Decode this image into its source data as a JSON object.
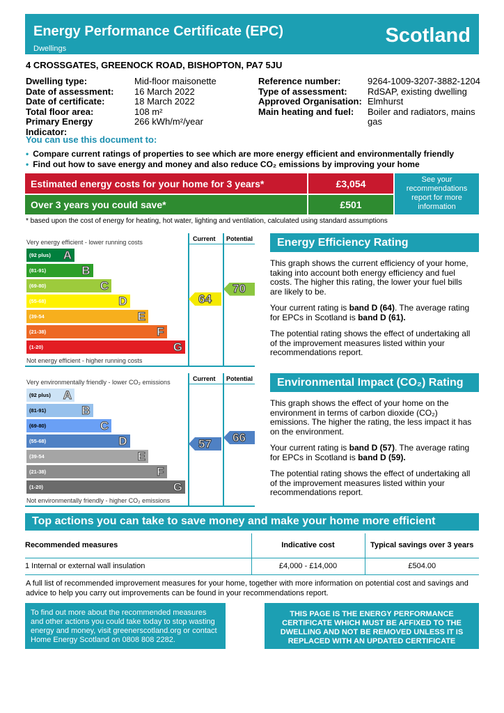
{
  "header": {
    "title": "Energy Performance Certificate (EPC)",
    "subtitle": "Dwellings",
    "region": "Scotland"
  },
  "address": "4 CROSSGATES,  GREENOCK ROAD, BISHOPTON, PA7 5JU",
  "details_left": [
    {
      "label": "Dwelling type:",
      "value": "Mid-floor maisonette"
    },
    {
      "label": "Date of assessment:",
      "value": "16 March 2022"
    },
    {
      "label": "Date of certificate:",
      "value": "18 March 2022"
    },
    {
      "label": "Total floor area:",
      "value": "108 m²"
    },
    {
      "label": "Primary Energy Indicator:",
      "value": "266 kWh/m²/year"
    }
  ],
  "details_right": [
    {
      "label": "Reference number:",
      "value": "9264-1009-3207-3882-1204"
    },
    {
      "label": "Type of assessment:",
      "value": "RdSAP, existing dwelling"
    },
    {
      "label": "Approved Organisation:",
      "value": "Elmhurst"
    },
    {
      "label": "Main heating and fuel:",
      "value": "Boiler and radiators, mains gas"
    }
  ],
  "use": {
    "heading": "You can use this document to:",
    "items": [
      "Compare current ratings of properties to see which are more energy efficient and environmentally friendly",
      "Find out how to save energy and money and also reduce CO₂ emissions by improving your home"
    ]
  },
  "costs": {
    "estimated_label": "Estimated energy costs for your home for 3 years*",
    "estimated_value": "£3,054",
    "save_label": "Over 3 years you could save*",
    "save_value": "£501",
    "see_recs": "See your recommendations report for more information",
    "footnote": "* based upon the cost of energy for heating, hot water, lighting and ventilation, calculated using standard assumptions"
  },
  "colors": {
    "teal": "#1c9fb3",
    "red": "#c8192e",
    "green": "#2e8b30"
  },
  "energy_chart": {
    "top": "Very energy efficient - lower running costs",
    "bottom": "Not energy efficient - higher running costs",
    "current_label": "Current",
    "potential_label": "Potential",
    "current": 64,
    "potential": 70,
    "current_color": "#f5ea00",
    "potential_color": "#8cc63f",
    "bands": [
      {
        "letter": "A",
        "range": "(92 plus)",
        "color": "#007f3d"
      },
      {
        "letter": "B",
        "range": "(81-91)",
        "color": "#2c9f29"
      },
      {
        "letter": "C",
        "range": "(69-80)",
        "color": "#9dcb3c"
      },
      {
        "letter": "D",
        "range": "(55-68)",
        "color": "#fff200"
      },
      {
        "letter": "E",
        "range": "(39-54",
        "color": "#f7af1d"
      },
      {
        "letter": "F",
        "range": "(21-38)",
        "color": "#ed6823"
      },
      {
        "letter": "G",
        "range": "(1-20)",
        "color": "#e31d23"
      }
    ]
  },
  "env_chart": {
    "top": "Very environmentally friendly - lower CO₂ emissions",
    "bottom": "Not environmentally friendly - higher CO₂ emissions",
    "current_label": "Current",
    "potential_label": "Potential",
    "current": 57,
    "potential": 66,
    "current_color": "#4f81c4",
    "potential_color": "#4f81c4",
    "bands": [
      {
        "letter": "A",
        "range": "(92 plus)",
        "color": "#cde3f6"
      },
      {
        "letter": "B",
        "range": "(81-91)",
        "color": "#97c1ec"
      },
      {
        "letter": "C",
        "range": "(69-80)",
        "color": "#6aa0f5"
      },
      {
        "letter": "D",
        "range": "(55-68)",
        "color": "#4f81c4"
      },
      {
        "letter": "E",
        "range": "(39-54",
        "color": "#a5a5a5"
      },
      {
        "letter": "F",
        "range": "(21-38)",
        "color": "#8c8c8c"
      },
      {
        "letter": "G",
        "range": "(1-20)",
        "color": "#6b6b6b"
      }
    ]
  },
  "eer": {
    "title": "Energy Efficiency Rating",
    "p1": "This graph shows the current efficiency of your home, taking into account both energy efficiency and fuel costs. The higher this rating, the lower your fuel bills are likely to be.",
    "p2a": "Your current rating is ",
    "p2b": "band D (64)",
    "p2c": ". The average rating for EPCs in Scotland is ",
    "p2d": "band D (61).",
    "p3": "The potential rating shows the effect of undertaking all of the improvement measures listed within your recommendations report."
  },
  "eir": {
    "title": "Environmental Impact (CO₂) Rating",
    "p1": "This graph shows the effect of your home on the environment in terms of carbon dioxide (CO₂) emissions. The higher the rating, the less impact it has on the environment.",
    "p2a": "Your current rating is ",
    "p2b": "band D (57)",
    "p2c": ". The average rating for EPCs in Scotland is ",
    "p2d": "band D (59).",
    "p3": "The potential rating shows the effect of undertaking all of the improvement measures listed within your recommendations report."
  },
  "actions": {
    "title": "Top actions you can take to save money and make your home more efficient",
    "headers": [
      "Recommended measures",
      "Indicative cost",
      "Typical savings over 3 years"
    ],
    "rows": [
      [
        "1 Internal or external wall insulation",
        "£4,000 - £14,000",
        "£504.00"
      ]
    ],
    "full_list": "A full list of recommended improvement measures for your home, together with more information on potential cost and savings and advice to help you carry out improvements can be found in your recommendations report."
  },
  "footer": {
    "left": "To find out more about the recommended measures and other actions you could take today to stop wasting energy and money, visit greenerscotland.org or contact Home Energy Scotland on 0808 808 2282.",
    "right": "THIS PAGE IS THE ENERGY PERFORMANCE CERTIFICATE WHICH MUST BE AFFIXED TO THE DWELLING AND NOT BE REMOVED UNLESS IT IS REPLACED WITH AN UPDATED CERTIFICATE"
  }
}
